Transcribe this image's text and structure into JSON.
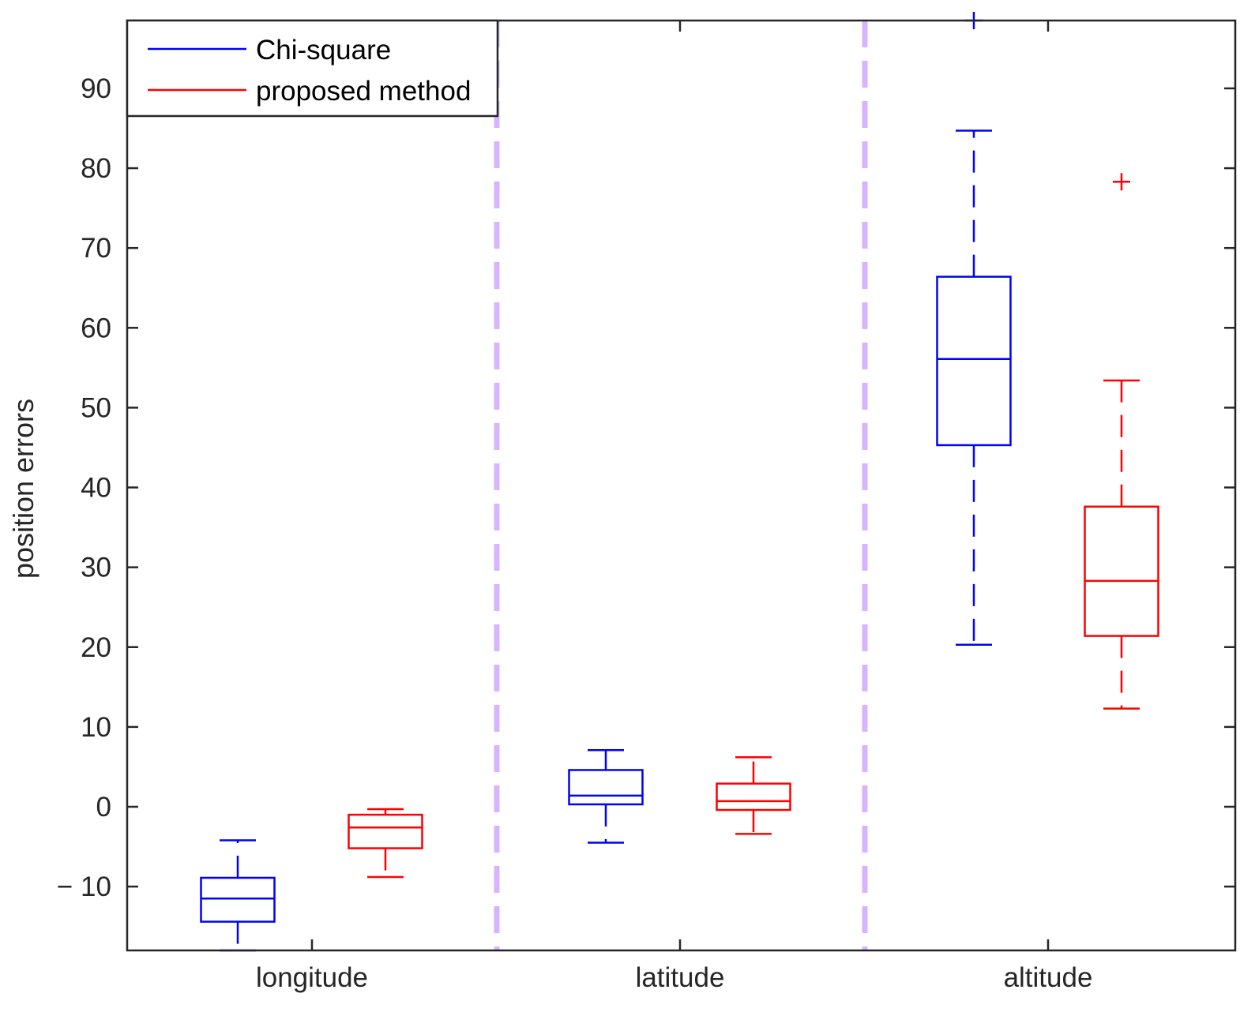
{
  "chart_data": {
    "type": "box",
    "title": "",
    "xlabel": "",
    "ylabel": "position errors",
    "ylim": [
      -18,
      98.5
    ],
    "yticks": [
      -10,
      0,
      10,
      20,
      30,
      40,
      50,
      60,
      70,
      80,
      90
    ],
    "ytick_labels": [
      "− 10",
      "0",
      "10",
      "20",
      "30",
      "40",
      "50",
      "60",
      "70",
      "80",
      "90"
    ],
    "categories": [
      "longitude",
      "latitude",
      "altitude"
    ],
    "grid": false,
    "legend_position": "top-left",
    "separator_color": "#d8b4fe",
    "series": [
      {
        "name": "Chi-square",
        "color": "#0000ff",
        "boxes": [
          {
            "category": "longitude",
            "whisker_low": -18.0,
            "q1": -14.4,
            "median": -11.5,
            "q3": -8.9,
            "whisker_high": -4.2,
            "outliers": []
          },
          {
            "category": "latitude",
            "whisker_low": -4.5,
            "q1": 0.3,
            "median": 1.4,
            "q3": 4.6,
            "whisker_high": 7.1,
            "outliers": []
          },
          {
            "category": "altitude",
            "whisker_low": 20.3,
            "q1": 45.3,
            "median": 56.1,
            "q3": 66.4,
            "whisker_high": 84.7,
            "outliers": [
              98.5
            ]
          }
        ]
      },
      {
        "name": "proposed method",
        "color": "#ff0000",
        "boxes": [
          {
            "category": "longitude",
            "whisker_low": -8.8,
            "q1": -5.2,
            "median": -2.6,
            "q3": -1.0,
            "whisker_high": -0.3,
            "outliers": []
          },
          {
            "category": "latitude",
            "whisker_low": -3.4,
            "q1": -0.4,
            "median": 0.7,
            "q3": 2.9,
            "whisker_high": 6.2,
            "outliers": []
          },
          {
            "category": "altitude",
            "whisker_low": 12.3,
            "q1": 21.4,
            "median": 28.3,
            "q3": 37.6,
            "whisker_high": 53.4,
            "outliers": [
              78.3
            ]
          }
        ]
      }
    ]
  }
}
